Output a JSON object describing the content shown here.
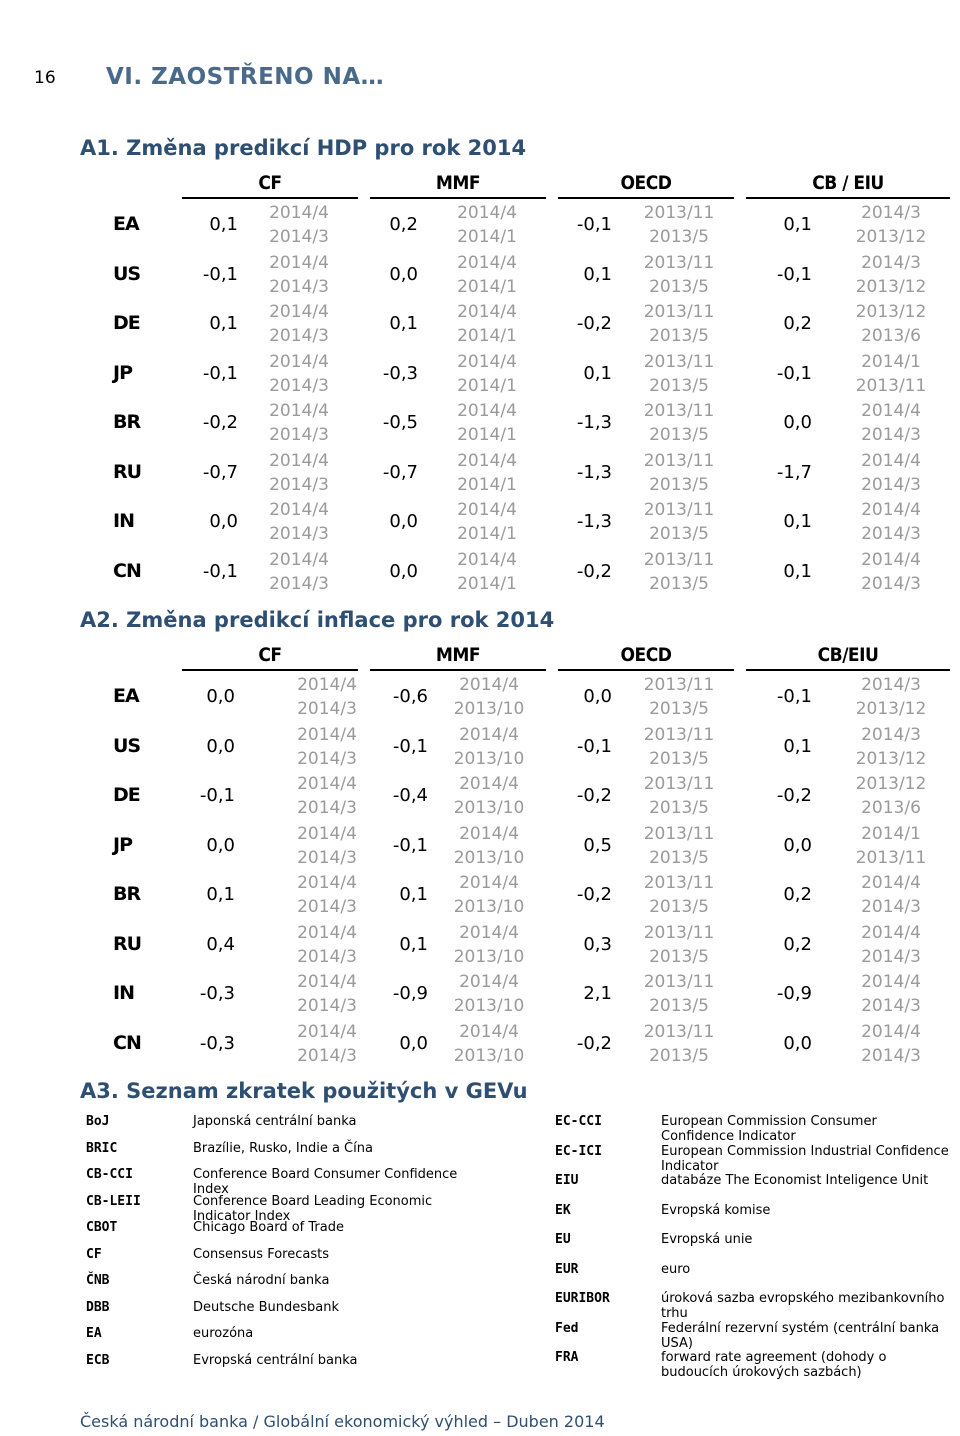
{
  "page_number": "16",
  "chapter_title": "VI. ZAOSTŘENO NA…",
  "sections": {
    "a1": {
      "title": "A1. Změna predikcí HDP pro rok 2014",
      "groups": [
        "CF",
        "MMF",
        "OECD",
        "CB / EIU"
      ],
      "rows": [
        {
          "code": "EA",
          "cf": "0,1",
          "cf_d1": "2014/4",
          "cf_d2": "2014/3",
          "mmf": "0,2",
          "mmf_d1": "2014/4",
          "mmf_d2": "2014/1",
          "oecd": "-0,1",
          "oecd_d1": "2013/11",
          "oecd_d2": "2013/5",
          "cb": "0,1",
          "cb_d1": "2014/3",
          "cb_d2": "2013/12"
        },
        {
          "code": "US",
          "cf": "-0,1",
          "cf_d1": "2014/4",
          "cf_d2": "2014/3",
          "mmf": "0,0",
          "mmf_d1": "2014/4",
          "mmf_d2": "2014/1",
          "oecd": "0,1",
          "oecd_d1": "2013/11",
          "oecd_d2": "2013/5",
          "cb": "-0,1",
          "cb_d1": "2014/3",
          "cb_d2": "2013/12"
        },
        {
          "code": "DE",
          "cf": "0,1",
          "cf_d1": "2014/4",
          "cf_d2": "2014/3",
          "mmf": "0,1",
          "mmf_d1": "2014/4",
          "mmf_d2": "2014/1",
          "oecd": "-0,2",
          "oecd_d1": "2013/11",
          "oecd_d2": "2013/5",
          "cb": "0,2",
          "cb_d1": "2013/12",
          "cb_d2": "2013/6"
        },
        {
          "code": "JP",
          "cf": "-0,1",
          "cf_d1": "2014/4",
          "cf_d2": "2014/3",
          "mmf": "-0,3",
          "mmf_d1": "2014/4",
          "mmf_d2": "2014/1",
          "oecd": "0,1",
          "oecd_d1": "2013/11",
          "oecd_d2": "2013/5",
          "cb": "-0,1",
          "cb_d1": "2014/1",
          "cb_d2": "2013/11"
        },
        {
          "code": "BR",
          "cf": "-0,2",
          "cf_d1": "2014/4",
          "cf_d2": "2014/3",
          "mmf": "-0,5",
          "mmf_d1": "2014/4",
          "mmf_d2": "2014/1",
          "oecd": "-1,3",
          "oecd_d1": "2013/11",
          "oecd_d2": "2013/5",
          "cb": "0,0",
          "cb_d1": "2014/4",
          "cb_d2": "2014/3"
        },
        {
          "code": "RU",
          "cf": "-0,7",
          "cf_d1": "2014/4",
          "cf_d2": "2014/3",
          "mmf": "-0,7",
          "mmf_d1": "2014/4",
          "mmf_d2": "2014/1",
          "oecd": "-1,3",
          "oecd_d1": "2013/11",
          "oecd_d2": "2013/5",
          "cb": "-1,7",
          "cb_d1": "2014/4",
          "cb_d2": "2014/3"
        },
        {
          "code": "IN",
          "cf": "0,0",
          "cf_d1": "2014/4",
          "cf_d2": "2014/3",
          "mmf": "0,0",
          "mmf_d1": "2014/4",
          "mmf_d2": "2014/1",
          "oecd": "-1,3",
          "oecd_d1": "2013/11",
          "oecd_d2": "2013/5",
          "cb": "0,1",
          "cb_d1": "2014/4",
          "cb_d2": "2014/3"
        },
        {
          "code": "CN",
          "cf": "-0,1",
          "cf_d1": "2014/4",
          "cf_d2": "2014/3",
          "mmf": "0,0",
          "mmf_d1": "2014/4",
          "mmf_d2": "2014/1",
          "oecd": "-0,2",
          "oecd_d1": "2013/11",
          "oecd_d2": "2013/5",
          "cb": "0,1",
          "cb_d1": "2014/4",
          "cb_d2": "2014/3"
        }
      ]
    },
    "a2": {
      "title": "A2. Změna predikcí inflace pro rok 2014",
      "groups": [
        "CF",
        "MMF",
        "OECD",
        "CB/EIU"
      ],
      "rows": [
        {
          "code": "EA",
          "cf": "0,0",
          "cf_d1": "2014/4",
          "cf_d2": "2014/3",
          "mmf": "-0,6",
          "mmf_d1": "2014/4",
          "mmf_d2": "2013/10",
          "oecd": "0,0",
          "oecd_d1": "2013/11",
          "oecd_d2": "2013/5",
          "cb": "-0,1",
          "cb_d1": "2014/3",
          "cb_d2": "2013/12"
        },
        {
          "code": "US",
          "cf": "0,0",
          "cf_d1": "2014/4",
          "cf_d2": "2014/3",
          "mmf": "-0,1",
          "mmf_d1": "2014/4",
          "mmf_d2": "2013/10",
          "oecd": "-0,1",
          "oecd_d1": "2013/11",
          "oecd_d2": "2013/5",
          "cb": "0,1",
          "cb_d1": "2014/3",
          "cb_d2": "2013/12"
        },
        {
          "code": "DE",
          "cf": "-0,1",
          "cf_d1": "2014/4",
          "cf_d2": "2014/3",
          "mmf": "-0,4",
          "mmf_d1": "2014/4",
          "mmf_d2": "2013/10",
          "oecd": "-0,2",
          "oecd_d1": "2013/11",
          "oecd_d2": "2013/5",
          "cb": "-0,2",
          "cb_d1": "2013/12",
          "cb_d2": "2013/6"
        },
        {
          "code": "JP",
          "cf": "0,0",
          "cf_d1": "2014/4",
          "cf_d2": "2014/3",
          "mmf": "-0,1",
          "mmf_d1": "2014/4",
          "mmf_d2": "2013/10",
          "oecd": "0,5",
          "oecd_d1": "2013/11",
          "oecd_d2": "2013/5",
          "cb": "0,0",
          "cb_d1": "2014/1",
          "cb_d2": "2013/11"
        },
        {
          "code": "BR",
          "cf": "0,1",
          "cf_d1": "2014/4",
          "cf_d2": "2014/3",
          "mmf": "0,1",
          "mmf_d1": "2014/4",
          "mmf_d2": "2013/10",
          "oecd": "-0,2",
          "oecd_d1": "2013/11",
          "oecd_d2": "2013/5",
          "cb": "0,2",
          "cb_d1": "2014/4",
          "cb_d2": "2014/3"
        },
        {
          "code": "RU",
          "cf": "0,4",
          "cf_d1": "2014/4",
          "cf_d2": "2014/3",
          "mmf": "0,1",
          "mmf_d1": "2014/4",
          "mmf_d2": "2013/10",
          "oecd": "0,3",
          "oecd_d1": "2013/11",
          "oecd_d2": "2013/5",
          "cb": "0,2",
          "cb_d1": "2014/4",
          "cb_d2": "2014/3"
        },
        {
          "code": "IN",
          "cf": "-0,3",
          "cf_d1": "2014/4",
          "cf_d2": "2014/3",
          "mmf": "-0,9",
          "mmf_d1": "2014/4",
          "mmf_d2": "2013/10",
          "oecd": "2,1",
          "oecd_d1": "2013/11",
          "oecd_d2": "2013/5",
          "cb": "-0,9",
          "cb_d1": "2014/4",
          "cb_d2": "2014/3"
        },
        {
          "code": "CN",
          "cf": "-0,3",
          "cf_d1": "2014/4",
          "cf_d2": "2014/3",
          "mmf": "0,0",
          "mmf_d1": "2014/4",
          "mmf_d2": "2013/10",
          "oecd": "-0,2",
          "oecd_d1": "2013/11",
          "oecd_d2": "2013/5",
          "cb": "0,0",
          "cb_d1": "2014/4",
          "cb_d2": "2014/3"
        }
      ]
    },
    "a3": {
      "title": "A3. Seznam zkratek použitých v GEVu",
      "left": [
        {
          "key": "BoJ",
          "desc": "Japonská centrální banka"
        },
        {
          "key": "BRIC",
          "desc": "Brazílie, Rusko, Indie a Čína"
        },
        {
          "key": "CB-CCI",
          "desc": "Conference Board Consumer Confidence Index"
        },
        {
          "key": "CB-LEII",
          "desc": "Conference Board Leading Economic Indicator Index"
        },
        {
          "key": "CBOT",
          "desc": "Chicago Board of Trade"
        },
        {
          "key": "CF",
          "desc": "Consensus Forecasts"
        },
        {
          "key": "ČNB",
          "desc": "Česká národní banka"
        },
        {
          "key": "DBB",
          "desc": "Deutsche Bundesbank"
        },
        {
          "key": "EA",
          "desc": "eurozóna"
        },
        {
          "key": "ECB",
          "desc": "Evropská centrální banka"
        }
      ],
      "right": [
        {
          "key": "EC-CCI",
          "desc": "European Commission Consumer Confidence Indicator"
        },
        {
          "key": "EC-ICI",
          "desc": "European Commission Industrial Confidence Indicator"
        },
        {
          "key": "EIU",
          "desc": "databáze The Economist Inteligence Unit"
        },
        {
          "key": "EK",
          "desc": "Evropská komise"
        },
        {
          "key": "EU",
          "desc": "Evropská unie"
        },
        {
          "key": "EUR",
          "desc": "euro"
        },
        {
          "key": "EURIBOR",
          "desc": "úroková sazba evropského mezibankovního trhu"
        },
        {
          "key": "Fed",
          "desc": "Federální rezervní systém (centrální banka USA)"
        },
        {
          "key": "FRA",
          "desc": "forward rate agreement (dohody o budoucích úrokových sazbách)"
        }
      ]
    }
  },
  "footer": "Česká národní banka / Globální ekonomický výhled – Duben 2014"
}
